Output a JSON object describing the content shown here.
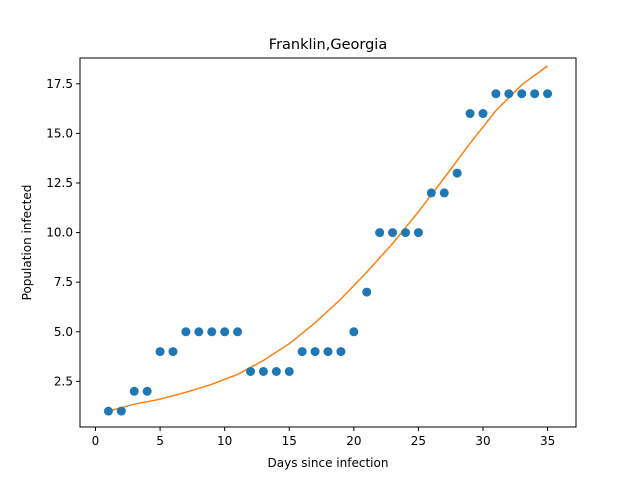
{
  "chart_data": {
    "type": "scatter",
    "title": "Franklin,Georgia",
    "xlabel": "Days since infection",
    "ylabel": "Population infected",
    "xlim": [
      -1.2,
      37.2
    ],
    "ylim": [
      0.2,
      18.8
    ],
    "xticks": [
      0,
      5,
      10,
      15,
      20,
      25,
      30,
      35
    ],
    "xtick_labels": [
      "0",
      "5",
      "10",
      "15",
      "20",
      "25",
      "30",
      "35"
    ],
    "yticks": [
      2.5,
      5.0,
      7.5,
      10.0,
      12.5,
      15.0,
      17.5
    ],
    "ytick_labels": [
      "2.5",
      "5.0",
      "7.5",
      "10.0",
      "12.5",
      "15.0",
      "17.5"
    ],
    "grid": false,
    "legend": "none",
    "series": [
      {
        "kind": "points",
        "color": "#1f77b4",
        "x": [
          1,
          2,
          3,
          4,
          5,
          6,
          7,
          8,
          9,
          10,
          11,
          12,
          13,
          14,
          15,
          16,
          17,
          18,
          19,
          20,
          21,
          22,
          23,
          24,
          25,
          26,
          27,
          28,
          29,
          30,
          31,
          32,
          33,
          34,
          35
        ],
        "y": [
          1,
          1,
          2,
          2,
          4,
          4,
          5,
          5,
          5,
          5,
          5,
          3,
          3,
          3,
          3,
          4,
          4,
          4,
          4,
          5,
          7,
          10,
          10,
          10,
          10,
          12,
          12,
          13,
          16,
          16,
          17,
          17,
          17,
          17,
          17
        ]
      },
      {
        "kind": "fit-line",
        "color": "#ff7f0e",
        "x": [
          1,
          3,
          5,
          7,
          9,
          11,
          13,
          15,
          17,
          19,
          21,
          23,
          25,
          27,
          29,
          31,
          33,
          35
        ],
        "y": [
          1.0,
          1.35,
          1.6,
          1.95,
          2.35,
          2.85,
          3.55,
          4.4,
          5.45,
          6.65,
          8.0,
          9.45,
          11.05,
          12.75,
          14.5,
          16.15,
          17.45,
          18.4
        ]
      }
    ]
  }
}
